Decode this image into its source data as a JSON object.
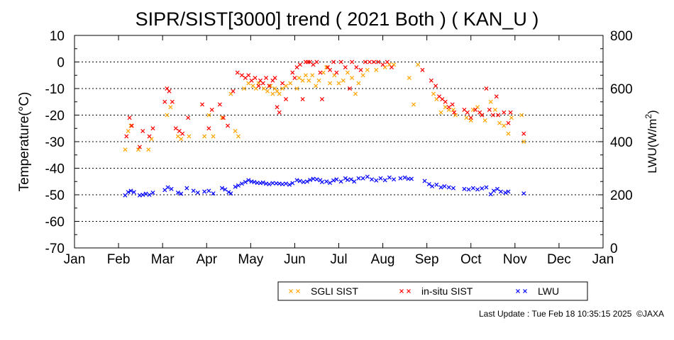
{
  "chart_data": {
    "type": "scatter",
    "title": "SIPR/SIST[3000] trend ( 2021 Both ) ( KAN_U )",
    "ylabel": "Temperature(°C)",
    "y2label": "LWU(W/m2)",
    "ylim": [
      -70,
      10
    ],
    "y2lim": [
      0,
      800
    ],
    "yticks": [
      10,
      0,
      -10,
      -20,
      -30,
      -40,
      -50,
      -60,
      -70
    ],
    "y2ticks": [
      800,
      600,
      400,
      200,
      0
    ],
    "xlim": [
      0,
      12
    ],
    "xticks": [
      "Jan",
      "Feb",
      "Mar",
      "Apr",
      "May",
      "Jun",
      "Jul",
      "Aug",
      "Sep",
      "Oct",
      "Nov",
      "Dec",
      "Jan"
    ],
    "grid": true,
    "legend_position": "bottom",
    "series": [
      {
        "name": "SGLI SIST",
        "color": "#ffa500",
        "axis": "left",
        "points": [
          [
            1.15,
            -33
          ],
          [
            1.22,
            -26
          ],
          [
            1.28,
            -24
          ],
          [
            1.45,
            -33
          ],
          [
            1.68,
            -33
          ],
          [
            1.75,
            -29
          ],
          [
            2.1,
            -20
          ],
          [
            2.18,
            -17
          ],
          [
            2.35,
            -28
          ],
          [
            2.42,
            -29
          ],
          [
            2.6,
            -28
          ],
          [
            2.95,
            -28
          ],
          [
            3.05,
            -20
          ],
          [
            3.15,
            -28
          ],
          [
            3.35,
            -21
          ],
          [
            3.55,
            -12
          ],
          [
            3.65,
            -26
          ],
          [
            3.72,
            -28
          ],
          [
            3.85,
            -10
          ],
          [
            3.95,
            -8
          ],
          [
            4.05,
            -9
          ],
          [
            4.12,
            -10
          ],
          [
            4.18,
            -8
          ],
          [
            4.3,
            -10
          ],
          [
            4.38,
            -11
          ],
          [
            4.45,
            -9
          ],
          [
            4.5,
            -12
          ],
          [
            4.55,
            -10
          ],
          [
            4.6,
            -11
          ],
          [
            4.65,
            -12
          ],
          [
            4.72,
            -10
          ],
          [
            4.8,
            -9
          ],
          [
            4.9,
            -8
          ],
          [
            5.05,
            -10
          ],
          [
            5.1,
            -6
          ],
          [
            5.18,
            -7
          ],
          [
            5.25,
            -5
          ],
          [
            5.32,
            -7
          ],
          [
            5.4,
            -5
          ],
          [
            5.48,
            -9
          ],
          [
            5.55,
            -7
          ],
          [
            5.65,
            -4
          ],
          [
            5.72,
            -2
          ],
          [
            5.8,
            -8
          ],
          [
            5.9,
            -5
          ],
          [
            6.0,
            -8
          ],
          [
            6.1,
            -7
          ],
          [
            6.2,
            -4
          ],
          [
            6.3,
            -6
          ],
          [
            6.38,
            -12
          ],
          [
            6.45,
            -8
          ],
          [
            6.55,
            -5
          ],
          [
            6.65,
            -3
          ],
          [
            6.85,
            -3
          ],
          [
            7.05,
            -2
          ],
          [
            7.15,
            -1
          ],
          [
            7.25,
            -1
          ],
          [
            7.6,
            -6
          ],
          [
            7.7,
            -16
          ],
          [
            7.8,
            -1
          ],
          [
            8.15,
            -12
          ],
          [
            8.22,
            -14
          ],
          [
            8.32,
            -19
          ],
          [
            8.42,
            -17
          ],
          [
            8.5,
            -18
          ],
          [
            8.6,
            -18
          ],
          [
            8.65,
            -20
          ],
          [
            8.9,
            -21
          ],
          [
            9.0,
            -22
          ],
          [
            9.05,
            -18
          ],
          [
            9.15,
            -17
          ],
          [
            9.25,
            -20
          ],
          [
            9.32,
            -22
          ],
          [
            9.45,
            -15
          ],
          [
            9.55,
            -18
          ],
          [
            9.65,
            -23
          ],
          [
            9.75,
            -24
          ],
          [
            9.85,
            -27
          ],
          [
            9.92,
            -21
          ],
          [
            10.15,
            -20
          ],
          [
            10.2,
            -30
          ]
        ]
      },
      {
        "name": "in-situ SIST",
        "color": "#ff0000",
        "axis": "left",
        "points": [
          [
            1.18,
            -28
          ],
          [
            1.25,
            -21
          ],
          [
            1.3,
            -24
          ],
          [
            1.48,
            -32
          ],
          [
            1.55,
            -26
          ],
          [
            1.7,
            -28
          ],
          [
            1.78,
            -25
          ],
          [
            2.05,
            -15
          ],
          [
            2.1,
            -10
          ],
          [
            2.15,
            -11
          ],
          [
            2.22,
            -15
          ],
          [
            2.3,
            -25
          ],
          [
            2.38,
            -26
          ],
          [
            2.45,
            -27
          ],
          [
            2.58,
            -21
          ],
          [
            2.9,
            -16
          ],
          [
            3.05,
            -25
          ],
          [
            3.12,
            -18
          ],
          [
            3.3,
            -16
          ],
          [
            3.38,
            -21
          ],
          [
            3.48,
            -24
          ],
          [
            3.6,
            -11
          ],
          [
            3.7,
            -4
          ],
          [
            3.8,
            -5
          ],
          [
            3.88,
            -6
          ],
          [
            3.95,
            -5
          ],
          [
            4.02,
            -7
          ],
          [
            4.1,
            -6
          ],
          [
            4.18,
            -9
          ],
          [
            4.22,
            -7
          ],
          [
            4.28,
            -8
          ],
          [
            4.35,
            -6
          ],
          [
            4.42,
            -9
          ],
          [
            4.5,
            -7
          ],
          [
            4.55,
            -6
          ],
          [
            4.6,
            -17
          ],
          [
            4.65,
            -19
          ],
          [
            4.72,
            -8
          ],
          [
            4.8,
            -14
          ],
          [
            4.95,
            -4
          ],
          [
            5.0,
            -6
          ],
          [
            5.05,
            -2
          ],
          [
            5.12,
            -1
          ],
          [
            5.18,
            -14
          ],
          [
            5.25,
            0
          ],
          [
            5.3,
            0
          ],
          [
            5.35,
            0
          ],
          [
            5.42,
            -1
          ],
          [
            5.5,
            0
          ],
          [
            5.58,
            -4
          ],
          [
            5.62,
            -14
          ],
          [
            5.75,
            -2
          ],
          [
            5.8,
            -3
          ],
          [
            5.88,
            0
          ],
          [
            5.95,
            -4
          ],
          [
            6.05,
            0
          ],
          [
            6.15,
            -2
          ],
          [
            6.25,
            -10
          ],
          [
            6.3,
            0
          ],
          [
            6.4,
            -2
          ],
          [
            6.5,
            -3
          ],
          [
            6.6,
            0
          ],
          [
            6.7,
            0
          ],
          [
            6.8,
            0
          ],
          [
            6.9,
            0
          ],
          [
            7.0,
            -1
          ],
          [
            7.1,
            0
          ],
          [
            7.2,
            -2
          ],
          [
            7.9,
            -3
          ],
          [
            8.1,
            -7
          ],
          [
            8.2,
            -9
          ],
          [
            8.28,
            -13
          ],
          [
            8.35,
            -14
          ],
          [
            8.42,
            -15
          ],
          [
            8.5,
            -17
          ],
          [
            8.58,
            -16
          ],
          [
            8.62,
            -19
          ],
          [
            8.85,
            -18
          ],
          [
            8.92,
            -19
          ],
          [
            9.0,
            -21
          ],
          [
            9.1,
            -18
          ],
          [
            9.2,
            -19
          ],
          [
            9.25,
            -20
          ],
          [
            9.35,
            -10
          ],
          [
            9.42,
            -18
          ],
          [
            9.5,
            -20
          ],
          [
            9.58,
            -13
          ],
          [
            9.62,
            -20
          ],
          [
            9.75,
            -19
          ],
          [
            9.85,
            -23
          ],
          [
            9.9,
            -19
          ],
          [
            10.2,
            -27
          ]
        ]
      },
      {
        "name": "LWU",
        "color": "#0000ff",
        "axis": "right",
        "points": [
          [
            1.15,
            198
          ],
          [
            1.22,
            210
          ],
          [
            1.28,
            215
          ],
          [
            1.35,
            210
          ],
          [
            1.48,
            198
          ],
          [
            1.55,
            200
          ],
          [
            1.62,
            204
          ],
          [
            1.7,
            200
          ],
          [
            1.78,
            208
          ],
          [
            2.05,
            218
          ],
          [
            2.12,
            228
          ],
          [
            2.2,
            222
          ],
          [
            2.35,
            208
          ],
          [
            2.42,
            204
          ],
          [
            2.55,
            225
          ],
          [
            2.7,
            215
          ],
          [
            2.8,
            208
          ],
          [
            2.95,
            212
          ],
          [
            3.05,
            215
          ],
          [
            3.15,
            205
          ],
          [
            3.35,
            225
          ],
          [
            3.42,
            220
          ],
          [
            3.5,
            210
          ],
          [
            3.55,
            205
          ],
          [
            3.65,
            230
          ],
          [
            3.72,
            235
          ],
          [
            3.8,
            242
          ],
          [
            3.88,
            248
          ],
          [
            3.95,
            255
          ],
          [
            4.02,
            250
          ],
          [
            4.08,
            248
          ],
          [
            4.15,
            245
          ],
          [
            4.22,
            244
          ],
          [
            4.28,
            246
          ],
          [
            4.35,
            242
          ],
          [
            4.42,
            240
          ],
          [
            4.5,
            244
          ],
          [
            4.58,
            243
          ],
          [
            4.65,
            242
          ],
          [
            4.72,
            240
          ],
          [
            4.8,
            242
          ],
          [
            4.88,
            238
          ],
          [
            4.95,
            244
          ],
          [
            5.05,
            255
          ],
          [
            5.12,
            252
          ],
          [
            5.2,
            248
          ],
          [
            5.28,
            250
          ],
          [
            5.35,
            256
          ],
          [
            5.42,
            260
          ],
          [
            5.5,
            258
          ],
          [
            5.58,
            255
          ],
          [
            5.62,
            248
          ],
          [
            5.72,
            250
          ],
          [
            5.8,
            245
          ],
          [
            5.88,
            254
          ],
          [
            5.95,
            258
          ],
          [
            6.05,
            250
          ],
          [
            6.15,
            262
          ],
          [
            6.2,
            256
          ],
          [
            6.28,
            258
          ],
          [
            6.35,
            250
          ],
          [
            6.45,
            262
          ],
          [
            6.55,
            262
          ],
          [
            6.65,
            268
          ],
          [
            6.75,
            258
          ],
          [
            6.85,
            254
          ],
          [
            6.95,
            262
          ],
          [
            7.05,
            255
          ],
          [
            7.15,
            265
          ],
          [
            7.25,
            258
          ],
          [
            7.4,
            262
          ],
          [
            7.5,
            265
          ],
          [
            7.58,
            260
          ],
          [
            7.65,
            260
          ],
          [
            7.95,
            252
          ],
          [
            8.05,
            240
          ],
          [
            8.12,
            232
          ],
          [
            8.22,
            238
          ],
          [
            8.32,
            228
          ],
          [
            8.4,
            232
          ],
          [
            8.5,
            228
          ],
          [
            8.6,
            225
          ],
          [
            8.85,
            222
          ],
          [
            8.95,
            220
          ],
          [
            9.05,
            225
          ],
          [
            9.15,
            220
          ],
          [
            9.25,
            224
          ],
          [
            9.35,
            228
          ],
          [
            9.45,
            202
          ],
          [
            9.52,
            215
          ],
          [
            9.6,
            222
          ],
          [
            9.68,
            212
          ],
          [
            9.78,
            208
          ],
          [
            9.85,
            212
          ],
          [
            10.2,
            205
          ]
        ]
      }
    ],
    "legend": [
      "SGLI SIST",
      "in-situ SIST",
      "LWU"
    ]
  },
  "footer": {
    "last_update": "Last Update : Tue Feb 18 10:35:15 2025  ©JAXA"
  }
}
